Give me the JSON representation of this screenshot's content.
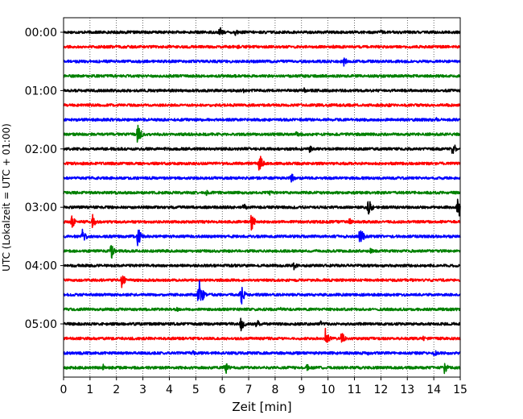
{
  "chart_data": {
    "type": "line",
    "title": "",
    "xlabel": "Zeit  [min]",
    "ylabel": "UTC (Lokalzeit = UTC + 01:00)",
    "xlim": [
      0,
      15
    ],
    "x_ticks": [
      "0",
      "1",
      "2",
      "3",
      "4",
      "5",
      "6",
      "7",
      "8",
      "9",
      "10",
      "11",
      "12",
      "13",
      "14",
      "15"
    ],
    "y_ticks": [
      "00:00",
      "01:00",
      "02:00",
      "03:00",
      "04:00",
      "05:00"
    ],
    "grid_x": "dotted vertical at each minute",
    "colors": [
      "#000000",
      "#ff0000",
      "#0000ff",
      "#008000"
    ],
    "series": [
      {
        "start": "00:00",
        "color": "#000000",
        "events": [
          {
            "t": 5.9,
            "amp": 0.45
          },
          {
            "t": 6.5,
            "amp": 0.3
          },
          {
            "t": 12.0,
            "amp": 0.2
          }
        ]
      },
      {
        "start": "00:15",
        "color": "#ff0000",
        "events": [
          {
            "t": 6.6,
            "amp": 0.15
          },
          {
            "t": 10.2,
            "amp": 0.15
          }
        ]
      },
      {
        "start": "00:30",
        "color": "#0000ff",
        "events": [
          {
            "t": 10.6,
            "amp": 0.35
          }
        ]
      },
      {
        "start": "00:45",
        "color": "#008000",
        "events": []
      },
      {
        "start": "01:00",
        "color": "#000000",
        "events": [
          {
            "t": 6.8,
            "amp": 0.2
          },
          {
            "t": 9.1,
            "amp": 0.2
          }
        ]
      },
      {
        "start": "01:15",
        "color": "#ff0000",
        "events": [
          {
            "t": 12.3,
            "amp": 0.15
          }
        ]
      },
      {
        "start": "01:30",
        "color": "#0000ff",
        "events": [
          {
            "t": 14.1,
            "amp": 0.2
          }
        ]
      },
      {
        "start": "01:45",
        "color": "#008000",
        "events": [
          {
            "t": 2.8,
            "amp": 0.8
          },
          {
            "t": 8.8,
            "amp": 0.25
          }
        ]
      },
      {
        "start": "02:00",
        "color": "#000000",
        "events": [
          {
            "t": 9.3,
            "amp": 0.3
          },
          {
            "t": 14.7,
            "amp": 0.6
          }
        ]
      },
      {
        "start": "02:15",
        "color": "#ff0000",
        "events": [
          {
            "t": 7.4,
            "amp": 0.75
          }
        ]
      },
      {
        "start": "02:30",
        "color": "#0000ff",
        "events": [
          {
            "t": 8.6,
            "amp": 0.45
          }
        ]
      },
      {
        "start": "02:45",
        "color": "#008000",
        "events": [
          {
            "t": 5.4,
            "amp": 0.2
          },
          {
            "t": 7.8,
            "amp": 0.2
          }
        ]
      },
      {
        "start": "03:00",
        "color": "#000000",
        "events": [
          {
            "t": 6.8,
            "amp": 0.35
          },
          {
            "t": 11.5,
            "amp": 0.9
          },
          {
            "t": 14.9,
            "amp": 1.0
          }
        ]
      },
      {
        "start": "03:15",
        "color": "#ff0000",
        "events": [
          {
            "t": 0.3,
            "amp": 0.55
          },
          {
            "t": 1.1,
            "amp": 0.55
          },
          {
            "t": 7.1,
            "amp": 0.65
          },
          {
            "t": 10.8,
            "amp": 0.3
          }
        ]
      },
      {
        "start": "03:30",
        "color": "#0000ff",
        "events": [
          {
            "t": 0.7,
            "amp": 0.75
          },
          {
            "t": 2.8,
            "amp": 0.75
          },
          {
            "t": 11.2,
            "amp": 0.75
          }
        ]
      },
      {
        "start": "03:45",
        "color": "#008000",
        "events": [
          {
            "t": 1.8,
            "amp": 0.6
          },
          {
            "t": 11.6,
            "amp": 0.2
          }
        ]
      },
      {
        "start": "04:00",
        "color": "#000000",
        "events": [
          {
            "t": 8.7,
            "amp": 0.35
          }
        ]
      },
      {
        "start": "04:15",
        "color": "#ff0000",
        "events": [
          {
            "t": 2.2,
            "amp": 0.55
          }
        ]
      },
      {
        "start": "04:30",
        "color": "#0000ff",
        "events": [
          {
            "t": 5.1,
            "amp": 1.4
          },
          {
            "t": 6.7,
            "amp": 0.9
          }
        ]
      },
      {
        "start": "04:45",
        "color": "#008000",
        "events": [
          {
            "t": 4.3,
            "amp": 0.2
          },
          {
            "t": 8.2,
            "amp": 0.15
          }
        ]
      },
      {
        "start": "05:00",
        "color": "#000000",
        "events": [
          {
            "t": 6.7,
            "amp": 0.6
          },
          {
            "t": 7.3,
            "amp": 0.4
          },
          {
            "t": 9.7,
            "amp": 0.25
          }
        ]
      },
      {
        "start": "05:15",
        "color": "#ff0000",
        "events": [
          {
            "t": 9.9,
            "amp": 0.7
          },
          {
            "t": 10.5,
            "amp": 0.55
          },
          {
            "t": 13.6,
            "amp": 0.2
          }
        ]
      },
      {
        "start": "05:30",
        "color": "#0000ff",
        "events": [
          {
            "t": 4.9,
            "amp": 0.2
          },
          {
            "t": 11.5,
            "amp": 0.25
          },
          {
            "t": 14.0,
            "amp": 0.3
          }
        ]
      },
      {
        "start": "05:45",
        "color": "#008000",
        "events": [
          {
            "t": 1.5,
            "amp": 0.25
          },
          {
            "t": 6.1,
            "amp": 0.6
          },
          {
            "t": 9.2,
            "amp": 0.3
          },
          {
            "t": 14.4,
            "amp": 0.45
          }
        ]
      }
    ]
  }
}
